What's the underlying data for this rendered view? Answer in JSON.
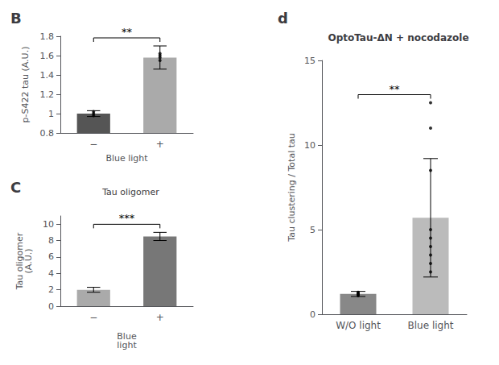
{
  "chart_data": [
    {
      "type": "bar",
      "label": "B",
      "categories": [
        "−",
        "+"
      ],
      "values": [
        1.0,
        1.58
      ],
      "error_bars": [
        0.03,
        0.12
      ],
      "dots": [
        [
          0.98,
          1.0,
          1.02
        ],
        [
          1.55,
          1.58,
          1.62,
          1.6
        ]
      ],
      "colors": [
        "#555555",
        "#AAAAAA"
      ],
      "xlabel": "Blue light",
      "ylabel": "p-S422 tau (A.U.)",
      "ylim": [
        0.8,
        1.8
      ],
      "yticks": [
        0.8,
        1.0,
        1.2,
        1.4,
        1.6,
        1.8
      ],
      "significance": "**",
      "grid": false
    },
    {
      "type": "bar",
      "label": "C",
      "annotation": "Tau oligomer",
      "categories": [
        "−",
        "+"
      ],
      "values": [
        2.0,
        8.5
      ],
      "error_bars": [
        0.3,
        0.5
      ],
      "colors": [
        "#AAAAAA",
        "#777777"
      ],
      "xlabel": "Blue\nlight",
      "ylabel": "Tau oligomer\n(A.U.)",
      "ylim": [
        0,
        11
      ],
      "yticks": [
        0,
        2,
        4,
        6,
        8,
        10
      ],
      "significance": "***",
      "grid": false
    },
    {
      "type": "bar",
      "label": "d",
      "title": "OptoTau-ΔN + nocodazole",
      "categories": [
        "W/O light",
        "Blue light"
      ],
      "values": [
        1.2,
        5.7
      ],
      "error_bars": [
        0.15,
        3.5
      ],
      "dots": [
        [
          1.1,
          1.15,
          1.2,
          1.25,
          1.3
        ],
        [
          2.5,
          3.0,
          3.5,
          4.0,
          4.5,
          5.0,
          8.5,
          11.0,
          12.5
        ]
      ],
      "colors": [
        "#888888",
        "#BBBBBB"
      ],
      "ylabel": "Tau clustering / Total tau",
      "ylim": [
        0,
        15
      ],
      "yticks": [
        0,
        5,
        10,
        15
      ],
      "significance": "**",
      "grid": false
    }
  ]
}
